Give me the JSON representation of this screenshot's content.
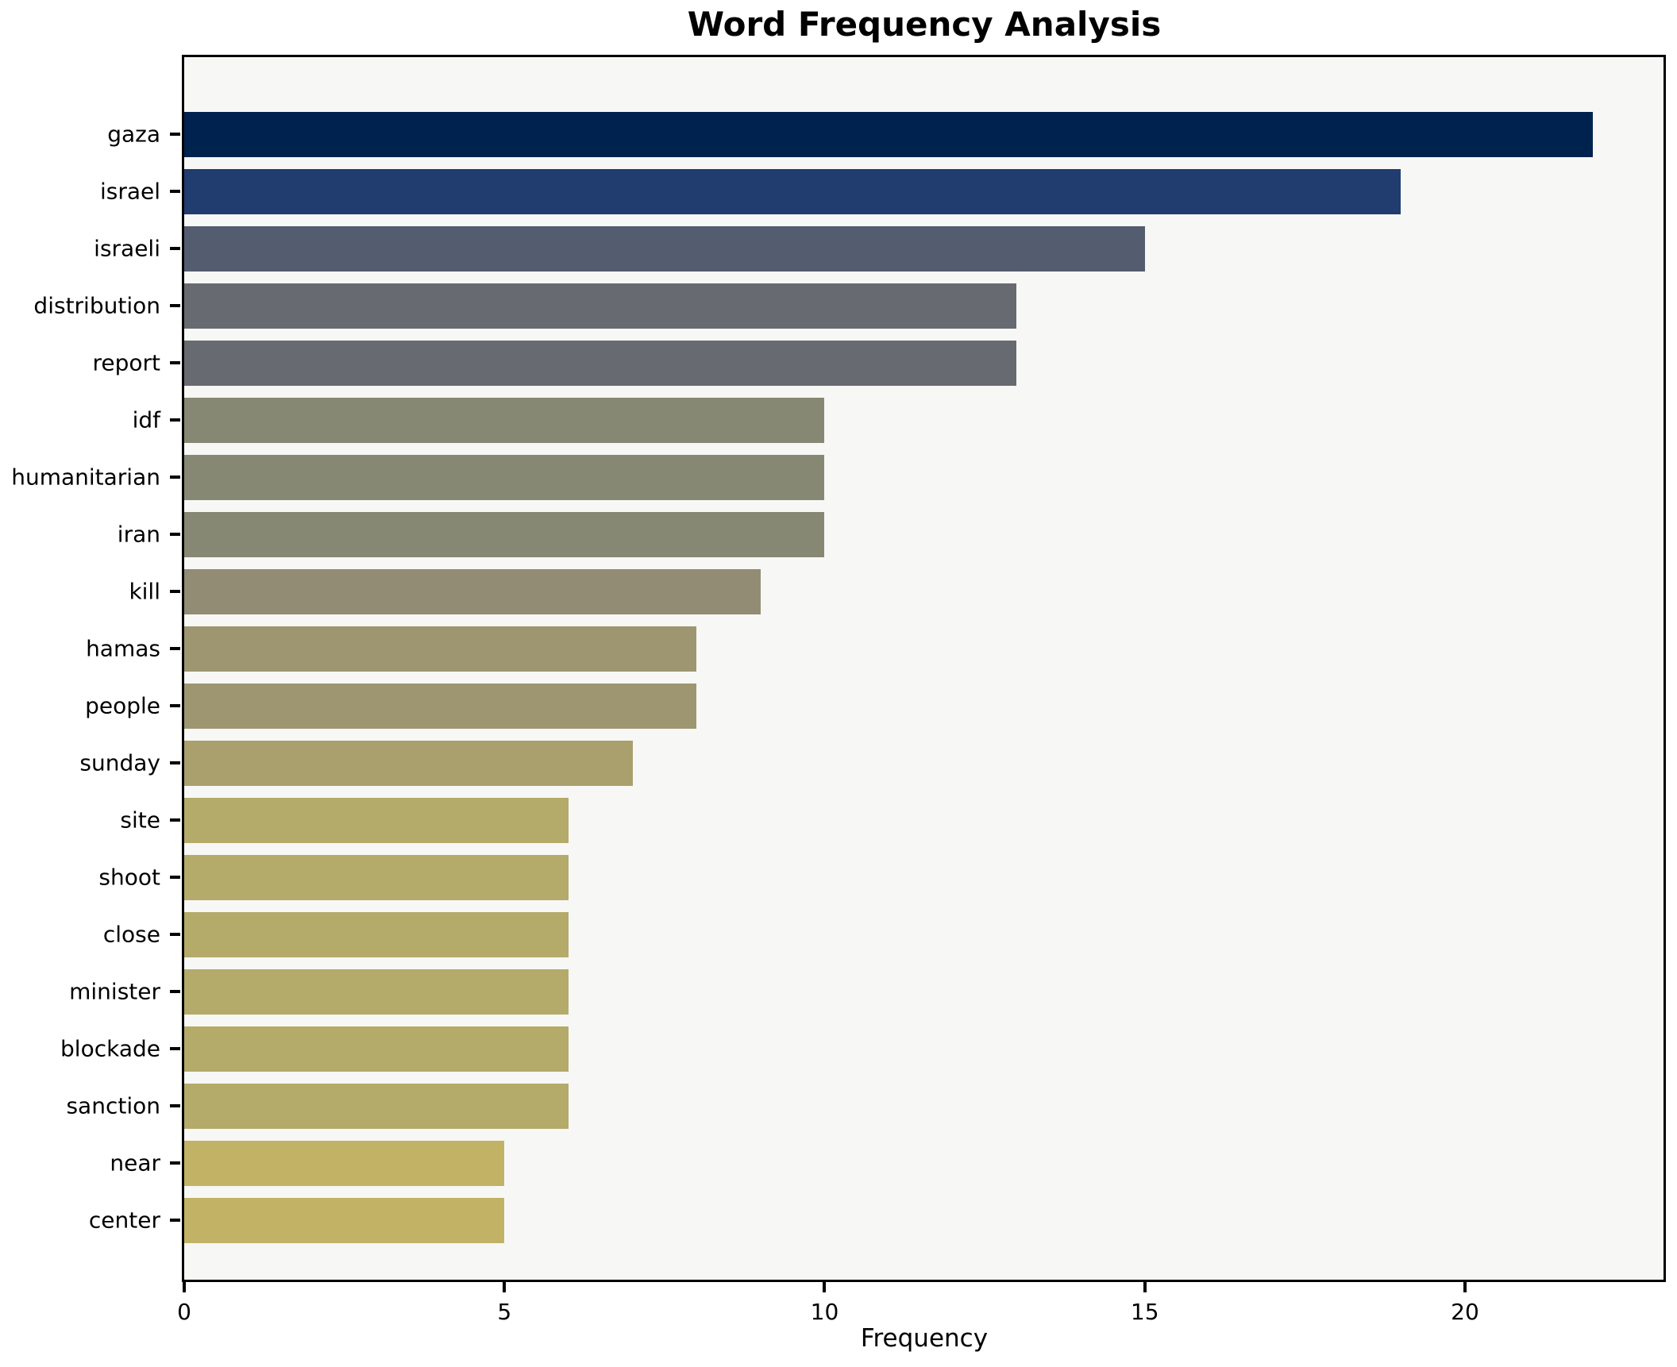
{
  "title": "Word Frequency Analysis",
  "xlabel": "Frequency",
  "colors": {
    "figure_bg": "#ffffff",
    "plot_bg": "#f7f7f5",
    "spine": "#000000",
    "text": "#000000"
  },
  "chart_data": {
    "type": "bar",
    "orientation": "horizontal",
    "title": "Word Frequency Analysis",
    "xlabel": "Frequency",
    "ylabel": "",
    "xlim": [
      0,
      23.1
    ],
    "xticks": [
      0,
      5,
      10,
      15,
      20
    ],
    "grid": false,
    "legend": "none",
    "categories": [
      "gaza",
      "israel",
      "israeli",
      "distribution",
      "report",
      "idf",
      "humanitarian",
      "iran",
      "kill",
      "hamas",
      "people",
      "sunday",
      "site",
      "shoot",
      "close",
      "minister",
      "blockade",
      "sanction",
      "near",
      "center"
    ],
    "values": [
      22,
      19,
      15,
      13,
      13,
      10,
      10,
      10,
      9,
      8,
      8,
      7,
      6,
      6,
      6,
      6,
      6,
      6,
      5,
      5
    ],
    "bar_colors": [
      "#00224e",
      "#213c6e",
      "#545c70",
      "#686a71",
      "#686a71",
      "#878873",
      "#878873",
      "#878873",
      "#928c74",
      "#9d9671",
      "#9d9671",
      "#a9a06e",
      "#b4aa6a",
      "#b4aa6a",
      "#b4aa6a",
      "#b4aa6a",
      "#b4aa6a",
      "#b4aa6a",
      "#c1b266",
      "#c1b266"
    ]
  }
}
